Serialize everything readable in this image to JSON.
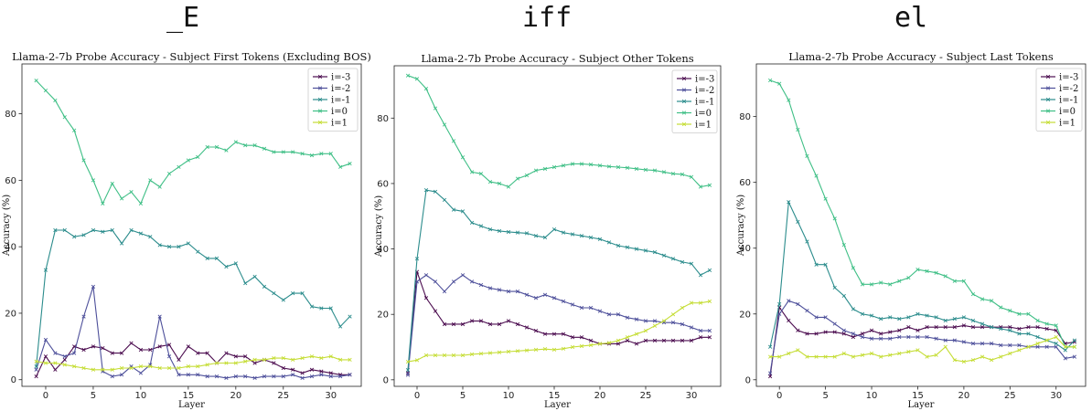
{
  "header_words": [
    "_E",
    "iff",
    "el"
  ],
  "colors": {
    "i=-3": "#4b0c4f",
    "i=-2": "#4d4f9a",
    "i=-1": "#2b8c8c",
    "i=0": "#3fbf86",
    "i=1": "#c5dd35"
  },
  "chart_data": [
    {
      "type": "line",
      "title": "Llama-2-7b Probe Accuracy - Subject First Tokens (Excluding BOS)",
      "xlabel": "Layer",
      "ylabel": "Accuracy (%)",
      "xlim": [
        -2.5,
        33.2
      ],
      "ylim": [
        -2,
        95
      ],
      "xticks": [
        0,
        5,
        10,
        15,
        20,
        25,
        30
      ],
      "yticks": [
        0,
        20,
        40,
        60,
        80
      ],
      "legend_position": "top-right",
      "x": [
        -1,
        0,
        1,
        2,
        3,
        4,
        5,
        6,
        7,
        8,
        9,
        10,
        11,
        12,
        13,
        14,
        15,
        16,
        17,
        18,
        19,
        20,
        21,
        22,
        23,
        24,
        25,
        26,
        27,
        28,
        29,
        30,
        31,
        32
      ],
      "series": [
        {
          "name": "i=-3",
          "values": [
            1,
            7,
            3,
            6,
            10,
            9,
            10,
            9.5,
            8,
            8,
            11,
            9,
            9,
            10,
            10.5,
            6,
            10,
            8,
            8,
            5,
            8,
            7,
            7,
            5,
            6,
            5,
            3.5,
            3,
            2,
            3,
            2.5,
            2,
            1.5,
            1.5
          ]
        },
        {
          "name": "i=-2",
          "values": [
            3,
            12,
            8,
            7,
            8,
            19,
            28,
            2.5,
            1,
            1.5,
            4,
            2,
            4.5,
            19,
            7,
            1.5,
            1.5,
            1.5,
            1,
            1,
            0.5,
            1,
            1,
            0.5,
            1,
            1,
            1,
            1.5,
            0.5,
            1,
            1.5,
            1,
            1,
            1.5
          ]
        },
        {
          "name": "i=-1",
          "values": [
            4,
            33,
            45,
            45,
            43,
            43.5,
            45,
            44.5,
            45,
            41,
            45,
            44,
            43,
            40.5,
            40,
            40,
            41,
            38.5,
            36.5,
            36.5,
            34,
            35,
            29,
            31,
            28,
            26,
            24,
            26,
            26,
            22,
            21.5,
            21.5,
            16,
            19
          ]
        },
        {
          "name": "i=0",
          "values": [
            90,
            87,
            84,
            79,
            75,
            66,
            60,
            53,
            59,
            54.5,
            56.5,
            53,
            60,
            58,
            62,
            64,
            66,
            67,
            70,
            70,
            69,
            71.5,
            70.5,
            70.5,
            69.5,
            68.5,
            68.5,
            68.5,
            68,
            67.5,
            68,
            68,
            64,
            65
          ]
        },
        {
          "name": "i=1",
          "values": [
            5.5,
            5,
            5,
            4.5,
            4,
            3.5,
            3,
            3,
            3,
            3.5,
            3.5,
            4,
            4,
            3.5,
            3.5,
            3.5,
            4,
            4,
            4.5,
            5,
            5,
            5,
            5.5,
            6,
            6,
            6.5,
            6.5,
            6,
            6.5,
            7,
            6.5,
            7,
            6,
            6
          ]
        }
      ]
    },
    {
      "type": "line",
      "title": "Llama-2-7b Probe Accuracy - Subject Other Tokens",
      "xlabel": "Layer",
      "ylabel": "Accuracy (%)",
      "xlim": [
        -2.5,
        33.2
      ],
      "ylim": [
        -2,
        96
      ],
      "xticks": [
        0,
        5,
        10,
        15,
        20,
        25,
        30
      ],
      "yticks": [
        0,
        20,
        40,
        60,
        80
      ],
      "legend_position": "top-right",
      "x": [
        -1,
        0,
        1,
        2,
        3,
        4,
        5,
        6,
        7,
        8,
        9,
        10,
        11,
        12,
        13,
        14,
        15,
        16,
        17,
        18,
        19,
        20,
        21,
        22,
        23,
        24,
        25,
        26,
        27,
        28,
        29,
        30,
        31,
        32
      ],
      "series": [
        {
          "name": "i=-3",
          "values": [
            2,
            33,
            25,
            21,
            17,
            17,
            17,
            18,
            18,
            17,
            17,
            18,
            17,
            16,
            15,
            14,
            14,
            14,
            13,
            13,
            12,
            11,
            11,
            11,
            12,
            11,
            12,
            12,
            12,
            12,
            12,
            12,
            13,
            13
          ]
        },
        {
          "name": "i=-2",
          "values": [
            1.5,
            30,
            32,
            30,
            27,
            30,
            32,
            30,
            29,
            28,
            27.5,
            27,
            27,
            26,
            25,
            26,
            25,
            24,
            23,
            22,
            22,
            21,
            20,
            20,
            19,
            18.5,
            18,
            18,
            17.5,
            17.5,
            17,
            16,
            15,
            15
          ]
        },
        {
          "name": "i=-1",
          "values": [
            3,
            37,
            58,
            57.5,
            55,
            52,
            51.5,
            48,
            47,
            46,
            45.5,
            45.2,
            45,
            44.8,
            44,
            43.5,
            46,
            45,
            44.5,
            44,
            43.5,
            43,
            42,
            41,
            40.5,
            40,
            39.5,
            39,
            38,
            37,
            36,
            35.5,
            32,
            33.5
          ]
        },
        {
          "name": "i=0",
          "values": [
            93,
            92,
            89,
            83,
            78,
            73,
            68,
            63.5,
            63,
            60.5,
            60,
            59,
            61.5,
            62.5,
            64,
            64.5,
            65,
            65.5,
            66,
            66,
            65.8,
            65.5,
            65.2,
            65,
            64.8,
            64.5,
            64.2,
            64,
            63.5,
            63,
            62.8,
            62,
            59,
            59.5
          ]
        },
        {
          "name": "i=1",
          "values": [
            5.5,
            6,
            7.5,
            7.5,
            7.5,
            7.5,
            7.5,
            7.8,
            8,
            8.2,
            8.4,
            8.6,
            8.8,
            9,
            9.2,
            9.4,
            9.2,
            9.5,
            10,
            10.3,
            10.6,
            11,
            11.3,
            12,
            13,
            14,
            15,
            16.5,
            18,
            20,
            22,
            23.5,
            23.5,
            24
          ]
        }
      ]
    },
    {
      "type": "line",
      "title": "Llama-2-7b Probe Accuracy - Subject Last Tokens",
      "xlabel": "Layer",
      "ylabel": "Accuracy (%)",
      "xlim": [
        -2.5,
        33.2
      ],
      "ylim": [
        -2,
        96
      ],
      "xticks": [
        0,
        5,
        10,
        15,
        20,
        25,
        30
      ],
      "yticks": [
        0,
        20,
        40,
        60,
        80
      ],
      "legend_position": "top-right",
      "x": [
        -1,
        0,
        1,
        2,
        3,
        4,
        5,
        6,
        7,
        8,
        9,
        10,
        11,
        12,
        13,
        14,
        15,
        16,
        17,
        18,
        19,
        20,
        21,
        22,
        23,
        24,
        25,
        26,
        27,
        28,
        29,
        30,
        31,
        32
      ],
      "series": [
        {
          "name": "i=-3",
          "values": [
            1,
            22,
            18,
            15,
            14,
            14,
            14.5,
            14.5,
            14,
            13,
            14,
            15,
            14,
            14.5,
            15,
            16,
            15,
            16,
            16,
            16,
            16,
            16.5,
            16,
            16,
            16,
            16,
            16,
            15.5,
            16,
            16,
            15.5,
            15,
            11,
            11.5
          ]
        },
        {
          "name": "i=-2",
          "values": [
            2,
            20,
            24,
            23,
            21,
            19,
            19,
            17,
            15,
            14,
            13,
            12.5,
            12.5,
            12.5,
            13,
            13,
            13,
            13,
            12.5,
            12,
            12,
            11.5,
            11,
            11,
            11,
            10.5,
            10.5,
            10.5,
            10,
            10,
            10,
            10,
            6.5,
            7
          ]
        },
        {
          "name": "i=-1",
          "values": [
            10,
            23,
            54,
            48,
            42,
            35,
            35,
            28,
            25.5,
            21.5,
            20,
            19.5,
            18.5,
            19,
            18.5,
            19,
            20,
            19.5,
            19,
            18,
            18.5,
            19,
            18,
            17,
            16,
            15.5,
            15,
            14,
            14,
            13,
            12,
            11,
            9,
            12
          ]
        },
        {
          "name": "i=0",
          "values": [
            91,
            90,
            85,
            76,
            68,
            62,
            55,
            49,
            41,
            34,
            29,
            29,
            29.5,
            29,
            30,
            31,
            33.5,
            33,
            32.5,
            31.5,
            30,
            30,
            26,
            24.5,
            24,
            22,
            21,
            20,
            20,
            18,
            17,
            16.5,
            10,
            10
          ]
        },
        {
          "name": "i=1",
          "values": [
            7,
            7,
            8,
            9,
            7,
            7,
            7,
            7,
            8,
            7,
            7.5,
            8,
            7,
            7.5,
            8,
            8.5,
            9,
            7,
            7.5,
            10,
            6,
            5.5,
            6,
            7,
            6,
            7,
            8,
            9,
            10,
            11,
            12,
            13,
            10,
            10
          ]
        }
      ]
    }
  ]
}
